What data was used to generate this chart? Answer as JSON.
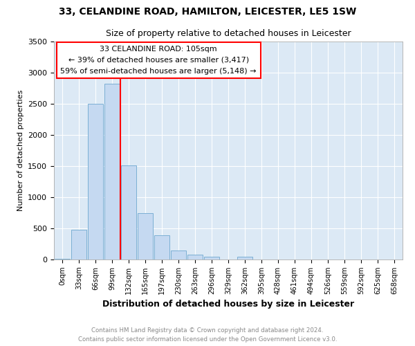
{
  "title1": "33, CELANDINE ROAD, HAMILTON, LEICESTER, LE5 1SW",
  "title2": "Size of property relative to detached houses in Leicester",
  "xlabel": "Distribution of detached houses by size in Leicester",
  "ylabel": "Number of detached properties",
  "categories": [
    "0sqm",
    "33sqm",
    "66sqm",
    "99sqm",
    "132sqm",
    "165sqm",
    "197sqm",
    "230sqm",
    "263sqm",
    "296sqm",
    "329sqm",
    "362sqm",
    "395sqm",
    "428sqm",
    "461sqm",
    "494sqm",
    "526sqm",
    "559sqm",
    "592sqm",
    "625sqm",
    "658sqm"
  ],
  "bar_values": [
    15,
    475,
    2500,
    2820,
    1510,
    740,
    390,
    140,
    75,
    50,
    0,
    50,
    0,
    0,
    0,
    0,
    0,
    0,
    0,
    0,
    0
  ],
  "bar_color": "#c5d9f1",
  "bar_edge_color": "#7bafd4",
  "annotation_text_line1": "33 CELANDINE ROAD: 105sqm",
  "annotation_text_line2": "← 39% of detached houses are smaller (3,417)",
  "annotation_text_line3": "59% of semi-detached houses are larger (5,148) →",
  "annotation_box_color": "white",
  "annotation_box_edge_color": "red",
  "vline_color": "red",
  "vline_x": 3.5,
  "ylim": [
    0,
    3500
  ],
  "yticks": [
    0,
    500,
    1000,
    1500,
    2000,
    2500,
    3000,
    3500
  ],
  "bg_color": "#dce9f5",
  "footer_line1": "Contains HM Land Registry data © Crown copyright and database right 2024.",
  "footer_line2": "Contains public sector information licensed under the Open Government Licence v3.0."
}
